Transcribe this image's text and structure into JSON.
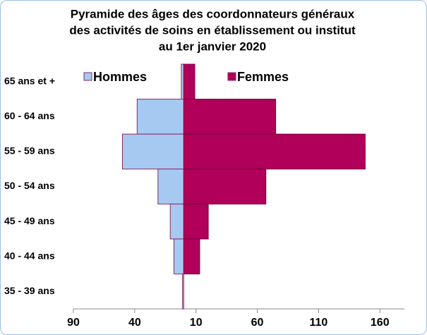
{
  "chart_data": {
    "type": "pyramid",
    "title": [
      "Pyramide des âges des coordonnateurs généraux",
      "des activités de soins en établissement ou institut",
      "au 1er janvier 2020"
    ],
    "categories": [
      "65 ans et +",
      "60 - 64 ans",
      "55 - 59 ans",
      "50 - 54 ans",
      "45 - 49 ans",
      "40 - 44 ans",
      "35 - 39 ans"
    ],
    "series": [
      {
        "name": "Hommes",
        "color": "#a6c9f2",
        "values": [
          -2,
          -38,
          -50,
          -21,
          -11,
          -8,
          -1
        ]
      },
      {
        "name": "Femmes",
        "color": "#b0005a",
        "values": [
          9,
          75,
          148,
          67,
          20,
          13,
          0
        ]
      }
    ],
    "xlim": [
      -90,
      180
    ],
    "xticks": [
      {
        "value": -90,
        "label": "90"
      },
      {
        "value": -40,
        "label": "40"
      },
      10,
      60,
      110,
      160
    ]
  }
}
